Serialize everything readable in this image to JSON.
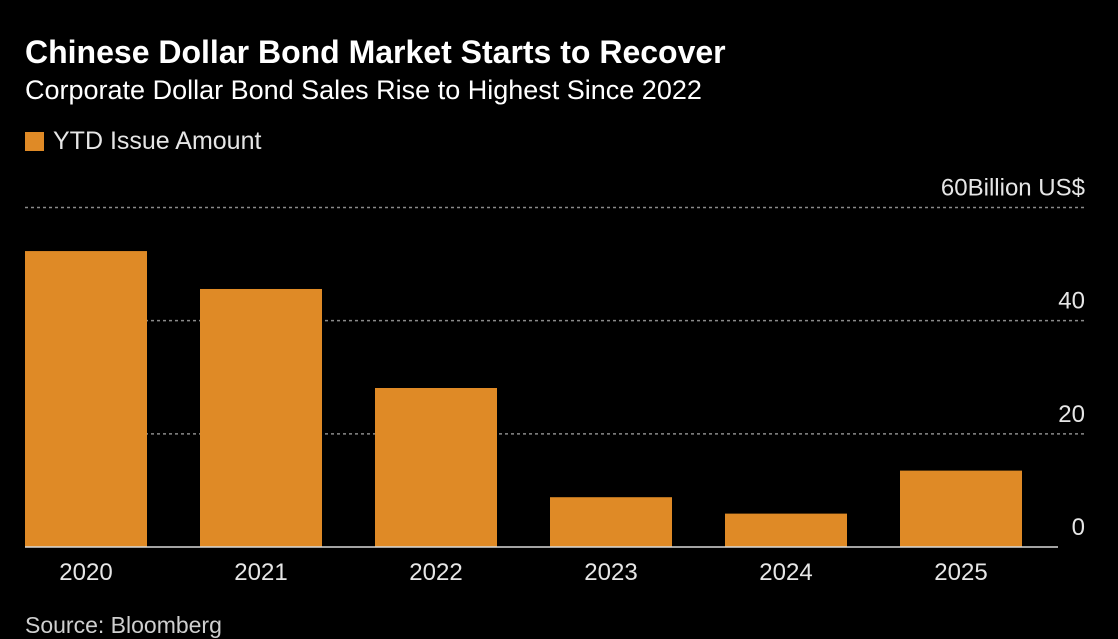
{
  "chart_data": {
    "type": "bar",
    "title": "Chinese Dollar Bond Market Starts to Recover",
    "subtitle": "Corporate Dollar Bond Sales Rise to Highest Since 2022",
    "legend": [
      "YTD Issue Amount"
    ],
    "categories": [
      "2020",
      "2021",
      "2022",
      "2023",
      "2024",
      "2025"
    ],
    "series": [
      {
        "name": "YTD Issue Amount",
        "values": [
          52.3,
          45.6,
          28.1,
          8.8,
          5.9,
          13.5
        ]
      }
    ],
    "xlabel": "",
    "ylabel": "",
    "ylim": [
      0,
      60
    ],
    "yticks": [
      {
        "value": 0,
        "label": "0"
      },
      {
        "value": 20,
        "label": "20"
      },
      {
        "value": 40,
        "label": "40"
      },
      {
        "value": 60,
        "label": "60Billion US$"
      }
    ],
    "grid": true,
    "bar_color": "#df8a26",
    "source": "Source: Bloomberg"
  }
}
